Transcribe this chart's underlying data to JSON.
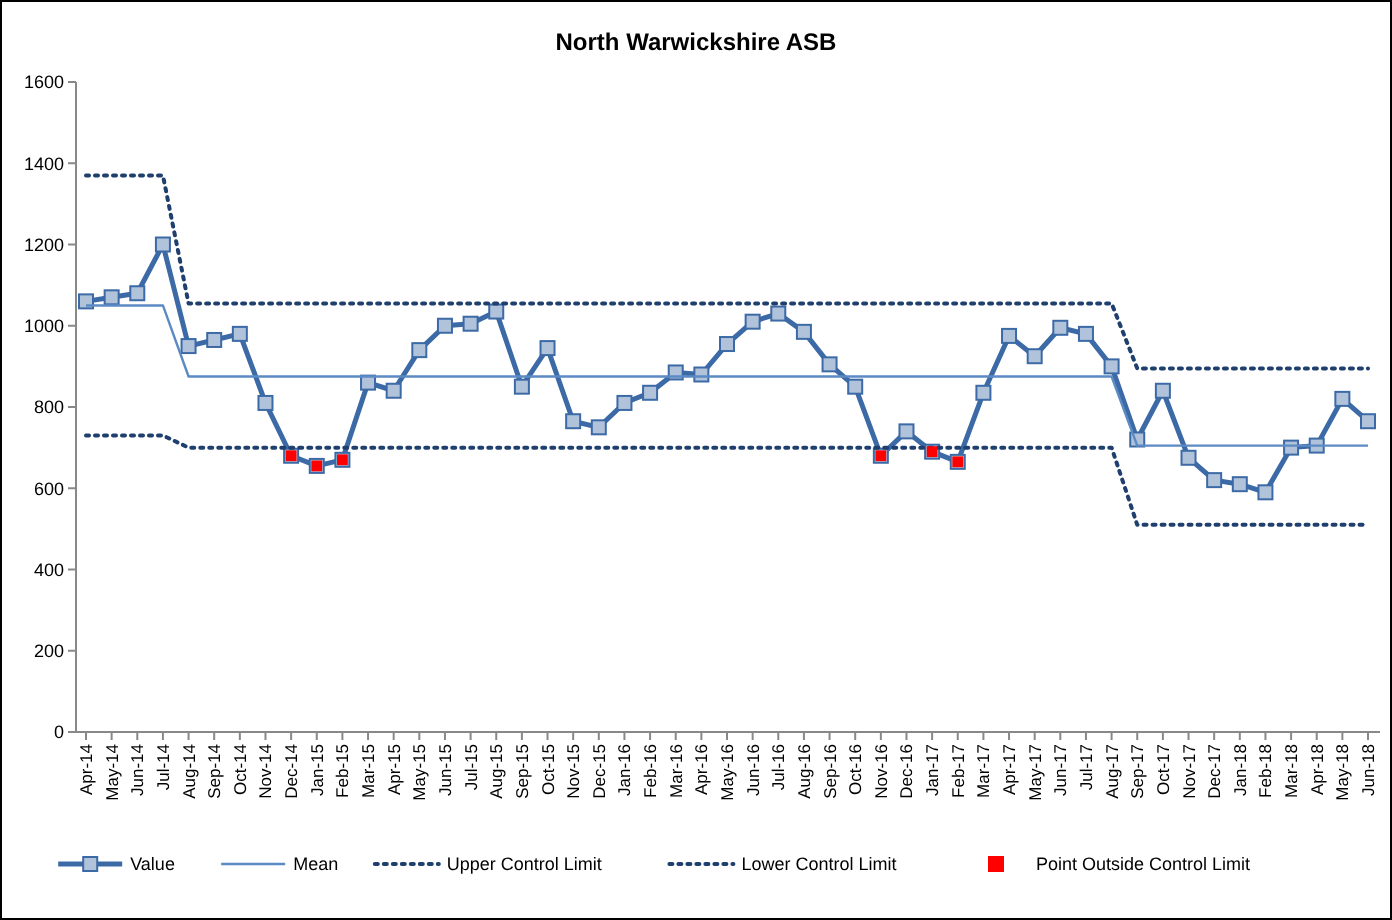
{
  "chart_data": {
    "type": "line",
    "title": "North Warwickshire ASB",
    "categories": [
      "Apr-14",
      "May-14",
      "Jun-14",
      "Jul-14",
      "Aug-14",
      "Sep-14",
      "Oct-14",
      "Nov-14",
      "Dec-14",
      "Jan-15",
      "Feb-15",
      "Mar-15",
      "Apr-15",
      "May-15",
      "Jun-15",
      "Jul-15",
      "Aug-15",
      "Sep-15",
      "Oct-15",
      "Nov-15",
      "Dec-15",
      "Jan-16",
      "Feb-16",
      "Mar-16",
      "Apr-16",
      "May-16",
      "Jun-16",
      "Jul-16",
      "Aug-16",
      "Sep-16",
      "Oct-16",
      "Nov-16",
      "Dec-16",
      "Jan-17",
      "Feb-17",
      "Mar-17",
      "Apr-17",
      "May-17",
      "Jun-17",
      "Jul-17",
      "Aug-17",
      "Sep-17",
      "Oct-17",
      "Nov-17",
      "Dec-17",
      "Jan-18",
      "Feb-18",
      "Mar-18",
      "Apr-18",
      "May-18",
      "Jun-18"
    ],
    "series": [
      {
        "name": "Value",
        "type": "line",
        "color": "#3c6aa6",
        "marker": "square",
        "line_style": "solid",
        "values": [
          1060,
          1070,
          1080,
          1200,
          950,
          965,
          980,
          810,
          680,
          655,
          670,
          860,
          840,
          940,
          1000,
          1005,
          1035,
          850,
          945,
          765,
          750,
          810,
          835,
          885,
          880,
          955,
          1010,
          1030,
          985,
          905,
          850,
          680,
          740,
          690,
          665,
          835,
          975,
          925,
          995,
          980,
          900,
          720,
          840,
          675,
          620,
          610,
          590,
          700,
          705,
          820,
          765
        ]
      },
      {
        "name": "Mean",
        "type": "line",
        "color": "#5b8ac4",
        "marker": "none",
        "line_style": "solid",
        "values": [
          1050,
          1050,
          1050,
          1050,
          875,
          875,
          875,
          875,
          875,
          875,
          875,
          875,
          875,
          875,
          875,
          875,
          875,
          875,
          875,
          875,
          875,
          875,
          875,
          875,
          875,
          875,
          875,
          875,
          875,
          875,
          875,
          875,
          875,
          875,
          875,
          875,
          875,
          875,
          875,
          875,
          875,
          705,
          705,
          705,
          705,
          705,
          705,
          705,
          705,
          705,
          705
        ]
      },
      {
        "name": "Upper Control Limit",
        "type": "line",
        "color": "#1f3f6e",
        "marker": "none",
        "line_style": "dotted",
        "values": [
          1370,
          1370,
          1370,
          1370,
          1055,
          1055,
          1055,
          1055,
          1055,
          1055,
          1055,
          1055,
          1055,
          1055,
          1055,
          1055,
          1055,
          1055,
          1055,
          1055,
          1055,
          1055,
          1055,
          1055,
          1055,
          1055,
          1055,
          1055,
          1055,
          1055,
          1055,
          1055,
          1055,
          1055,
          1055,
          1055,
          1055,
          1055,
          1055,
          1055,
          1055,
          895,
          895,
          895,
          895,
          895,
          895,
          895,
          895,
          895,
          895
        ]
      },
      {
        "name": "Lower Control Limit",
        "type": "line",
        "color": "#1f3f6e",
        "marker": "none",
        "line_style": "dotted",
        "values": [
          730,
          730,
          730,
          730,
          700,
          700,
          700,
          700,
          700,
          700,
          700,
          700,
          700,
          700,
          700,
          700,
          700,
          700,
          700,
          700,
          700,
          700,
          700,
          700,
          700,
          700,
          700,
          700,
          700,
          700,
          700,
          700,
          700,
          700,
          700,
          700,
          700,
          700,
          700,
          700,
          700,
          510,
          510,
          510,
          510,
          510,
          510,
          510,
          510,
          510,
          510
        ]
      },
      {
        "name": "Point Outside Control Limit",
        "type": "scatter",
        "color": "#ff0000",
        "marker": "square",
        "values": [
          null,
          null,
          null,
          null,
          null,
          null,
          null,
          null,
          680,
          655,
          670,
          null,
          null,
          null,
          null,
          null,
          null,
          null,
          null,
          null,
          null,
          null,
          null,
          null,
          null,
          null,
          null,
          null,
          null,
          null,
          null,
          680,
          null,
          690,
          665,
          null,
          null,
          null,
          null,
          null,
          null,
          null,
          null,
          null,
          null,
          null,
          null,
          null,
          null,
          null,
          null
        ]
      }
    ],
    "ylim": [
      0,
      1600
    ],
    "yticks": [
      0,
      200,
      400,
      600,
      800,
      1000,
      1200,
      1400,
      1600
    ],
    "grid": false,
    "legend": "bottom"
  }
}
